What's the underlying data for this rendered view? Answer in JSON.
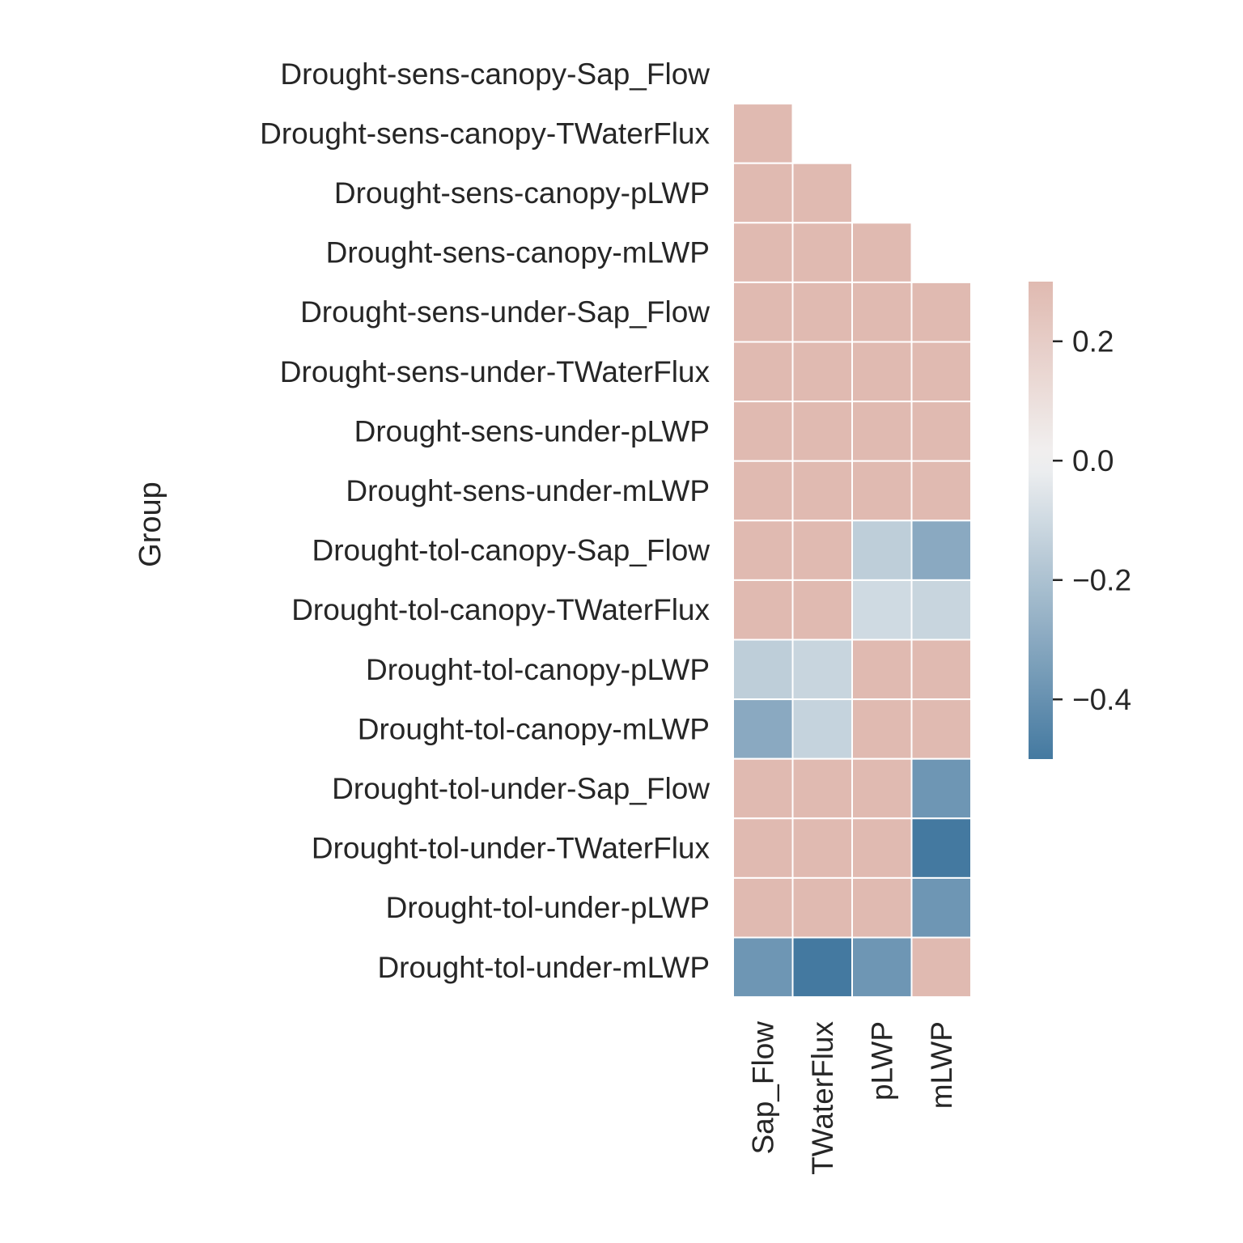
{
  "chart_data": {
    "type": "heatmap",
    "title": "",
    "ylabel": "Group",
    "xlabel": "",
    "rows": [
      "Drought-sens-canopy-Sap_Flow",
      "Drought-sens-canopy-TWaterFlux",
      "Drought-sens-canopy-pLWP",
      "Drought-sens-canopy-mLWP",
      "Drought-sens-under-Sap_Flow",
      "Drought-sens-under-TWaterFlux",
      "Drought-sens-under-pLWP",
      "Drought-sens-under-mLWP",
      "Drought-tol-canopy-Sap_Flow",
      "Drought-tol-canopy-TWaterFlux",
      "Drought-tol-canopy-pLWP",
      "Drought-tol-canopy-mLWP",
      "Drought-tol-under-Sap_Flow",
      "Drought-tol-under-TWaterFlux",
      "Drought-tol-under-pLWP",
      "Drought-tol-under-mLWP"
    ],
    "columns": [
      "Sap_Flow",
      "TWaterFlux",
      "pLWP",
      "mLWP"
    ],
    "values": [
      [
        null,
        null,
        null,
        null
      ],
      [
        0.3,
        null,
        null,
        null
      ],
      [
        0.3,
        0.3,
        null,
        null
      ],
      [
        0.3,
        0.3,
        0.3,
        null
      ],
      [
        0.3,
        0.3,
        0.3,
        0.3
      ],
      [
        0.3,
        0.3,
        0.3,
        0.3
      ],
      [
        0.3,
        0.3,
        0.3,
        0.3
      ],
      [
        0.3,
        0.3,
        0.3,
        0.3
      ],
      [
        0.3,
        0.3,
        -0.15,
        -0.3
      ],
      [
        0.3,
        0.3,
        -0.1,
        -0.12
      ],
      [
        -0.15,
        -0.12,
        0.3,
        0.3
      ],
      [
        -0.3,
        -0.13,
        0.3,
        0.3
      ],
      [
        0.3,
        0.3,
        0.3,
        -0.38
      ],
      [
        0.3,
        0.3,
        0.3,
        -0.5
      ],
      [
        0.3,
        0.3,
        0.3,
        -0.38
      ],
      [
        -0.38,
        -0.5,
        -0.38,
        0.3
      ]
    ],
    "colorbar": {
      "vmin": -0.5,
      "vmax": 0.3,
      "ticks": [
        0.2,
        0.0,
        -0.2,
        -0.4
      ],
      "tick_labels": [
        "0.2",
        "0.0",
        "−0.2",
        "−0.4"
      ],
      "colors": {
        "negative_end": "#4479a0",
        "center": "#f2f2f2",
        "positive_end": "#d49485"
      }
    },
    "mask": "upper-triangle-including-diagonal",
    "grid_line_color": "#ffffff"
  }
}
